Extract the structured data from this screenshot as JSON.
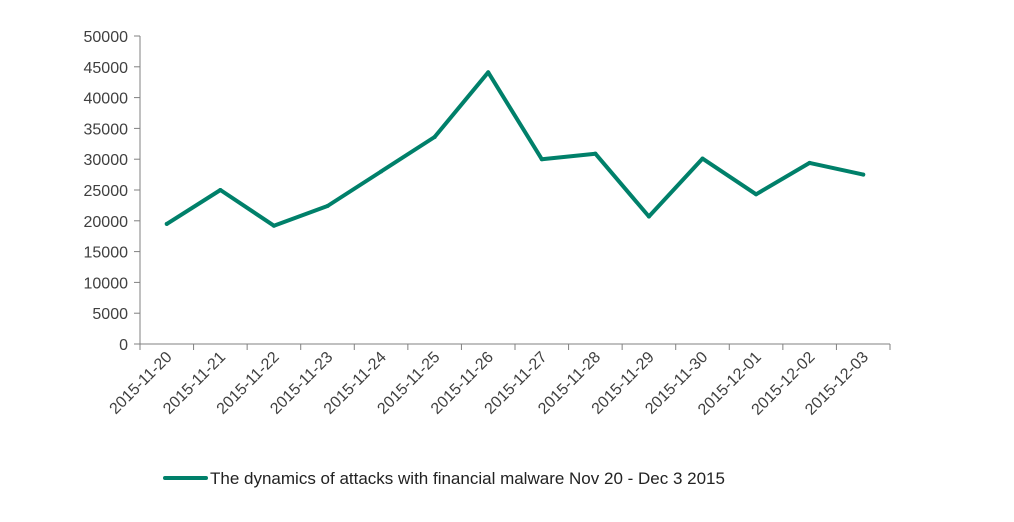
{
  "chart_data": {
    "type": "line",
    "title": "",
    "xlabel": "",
    "ylabel": "",
    "categories": [
      "2015-11-20",
      "2015-11-21",
      "2015-11-22",
      "2015-11-23",
      "2015-11-24",
      "2015-11-25",
      "2015-11-26",
      "2015-11-27",
      "2015-11-28",
      "2015-11-29",
      "2015-11-30",
      "2015-12-01",
      "2015-12-02",
      "2015-12-03"
    ],
    "series": [
      {
        "name": "The dynamics of attacks with financial malware Nov 20 - Dec 3 2015",
        "color": "#00806a",
        "values": [
          19500,
          25000,
          19200,
          22400,
          28000,
          33600,
          44100,
          30000,
          30900,
          20700,
          30100,
          24300,
          29400,
          27500
        ]
      }
    ],
    "yticks": [
      "0",
      "5000",
      "10000",
      "15000",
      "20000",
      "25000",
      "30000",
      "35000",
      "40000",
      "45000",
      "50000"
    ],
    "ylim": [
      0,
      50000
    ],
    "grid": false,
    "legend_position": "bottom",
    "axis_color": "#808080"
  }
}
